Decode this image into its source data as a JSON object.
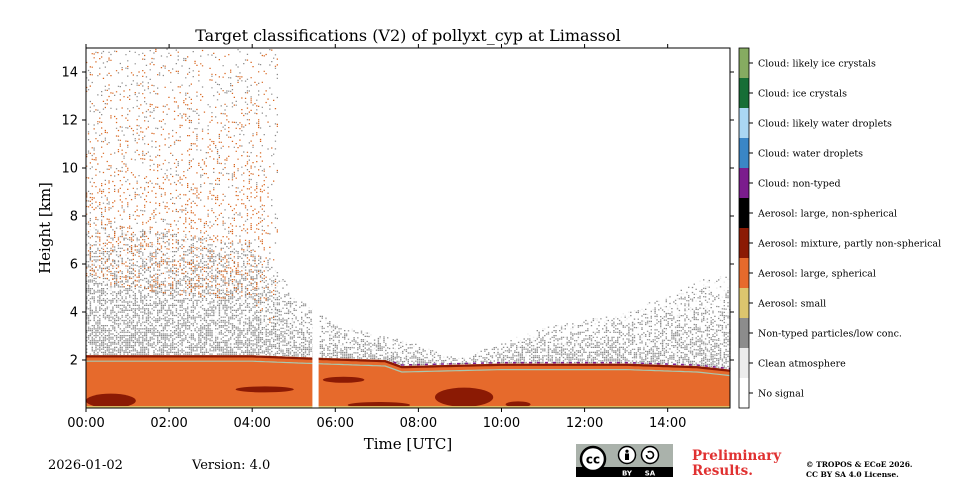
{
  "date": "2026-01-02",
  "version": "Version: 4.0",
  "preliminary": [
    "Preliminary",
    "Results."
  ],
  "copyright": [
    "© TROPOS & ECoE 2026.",
    "CC BY SA 4.0 License."
  ],
  "license_badge": {
    "cc": "cc",
    "by": "BY",
    "sa": "SA"
  },
  "colors": {
    "aerosol_large_spherical": "#e66a2c",
    "aerosol_mixture": "#8b1a04",
    "non_typed": "#8c8c8c",
    "cloud_non_typed": "#7b1c8d",
    "aerosol_small": "#d9c06a",
    "preliminary": "#e03131"
  },
  "chart_data": {
    "type": "heatmap",
    "title": "Target classifications (V2) of pollyxt_cyp at Limassol",
    "xlabel": "Time [UTC]",
    "ylabel": "Height [km]",
    "xlim": [
      0,
      15.5
    ],
    "ylim": [
      0,
      15
    ],
    "x_ticks": [
      0,
      2,
      4,
      6,
      8,
      10,
      12,
      14
    ],
    "x_tick_labels": [
      "00:00",
      "02:00",
      "04:00",
      "06:00",
      "08:00",
      "10:00",
      "12:00",
      "14:00"
    ],
    "y_ticks": [
      2,
      4,
      6,
      8,
      10,
      12,
      14
    ],
    "y_tick_labels": [
      "2",
      "4",
      "6",
      "8",
      "10",
      "12",
      "14"
    ],
    "classes": [
      {
        "label": "No signal",
        "color": "#ffffff"
      },
      {
        "label": "Clean atmosphere",
        "color": "#ececec"
      },
      {
        "label": "Non-typed particles/low conc.",
        "color": "#8c8c8c"
      },
      {
        "label": "Aerosol: small",
        "color": "#dcc56e"
      },
      {
        "label": "Aerosol: large, spherical",
        "color": "#e66a2c"
      },
      {
        "label": "Aerosol: mixture, partly non-spherical",
        "color": "#8b1a04"
      },
      {
        "label": "Aerosol: large, non-spherical",
        "color": "#000000"
      },
      {
        "label": "Cloud: non-typed",
        "color": "#7b1c8d"
      },
      {
        "label": "Cloud: water droplets",
        "color": "#3a86c6"
      },
      {
        "label": "Cloud: likely water droplets",
        "color": "#aad7f3"
      },
      {
        "label": "Cloud: ice crystals",
        "color": "#176e36"
      },
      {
        "label": "Cloud: likely ice crystals",
        "color": "#86ab61"
      }
    ],
    "layers": {
      "boundary_layer_top_km": [
        [
          0,
          2.2
        ],
        [
          4.0,
          2.2
        ],
        [
          5.5,
          2.1
        ],
        [
          7.2,
          2.0
        ],
        [
          7.6,
          1.75
        ],
        [
          10,
          1.85
        ],
        [
          13,
          1.85
        ],
        [
          14.7,
          1.75
        ],
        [
          15.5,
          1.6
        ]
      ],
      "non_typed_top_km": [
        [
          0,
          7.8
        ],
        [
          2,
          7.3
        ],
        [
          4,
          7.0
        ],
        [
          5,
          4.8
        ],
        [
          6,
          3.5
        ],
        [
          7.5,
          2.9
        ],
        [
          9,
          2.1
        ],
        [
          11,
          3.4
        ],
        [
          13,
          4.0
        ],
        [
          15,
          5.5
        ]
      ],
      "ice_sparse_top_km": [
        [
          0,
          15
        ],
        [
          4.5,
          15
        ],
        [
          5.0,
          4.0
        ]
      ],
      "data_gaps_h": [
        [
          5.45,
          5.6
        ]
      ]
    }
  }
}
